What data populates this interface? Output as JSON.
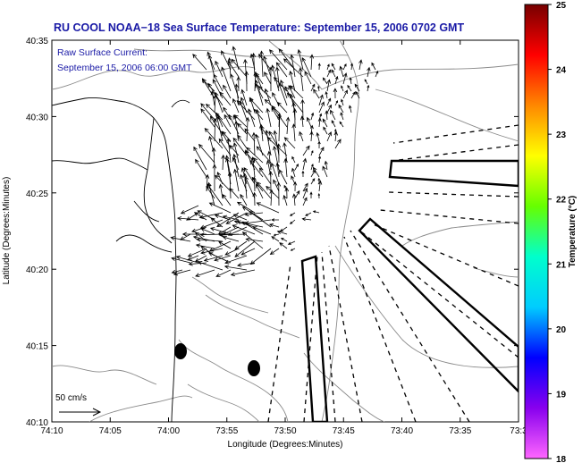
{
  "title": "RU COOL  NOAA−18  Sea Surface Temperature:  September 15, 2006 0702 GMT",
  "current_note": {
    "line1": "Raw Surface Current:",
    "line2": "September 15, 2006 06:00 GMT"
  },
  "x_axis": {
    "label": "Longitude (Degrees:Minutes)",
    "ticks": [
      "74:10",
      "74:05",
      "74:00",
      "73:55",
      "73:50",
      "73:45",
      "73:40",
      "73:35",
      "73:3"
    ]
  },
  "y_axis": {
    "label": "Latitude (Degrees:Minutes)",
    "ticks": [
      "40:35",
      "40:30",
      "40:25",
      "40:20",
      "40:15",
      "40:10"
    ]
  },
  "scale_label": "50 cm/s",
  "colorbar": {
    "label": "Temperature (°C)",
    "ticks": [
      "25",
      "24",
      "23",
      "22",
      "21",
      "20",
      "19",
      "18"
    ],
    "min": 18,
    "max": 25,
    "colors": [
      "#ff66ff",
      "#8800ee",
      "#0000ff",
      "#00ccff",
      "#00ffcc",
      "#66ff00",
      "#ffff00",
      "#ff8800",
      "#ff0000",
      "#770000"
    ]
  },
  "map_colors": {
    "arrows": "#000000",
    "bathymetry": "#8a8a8a",
    "coast": "#000000"
  }
}
